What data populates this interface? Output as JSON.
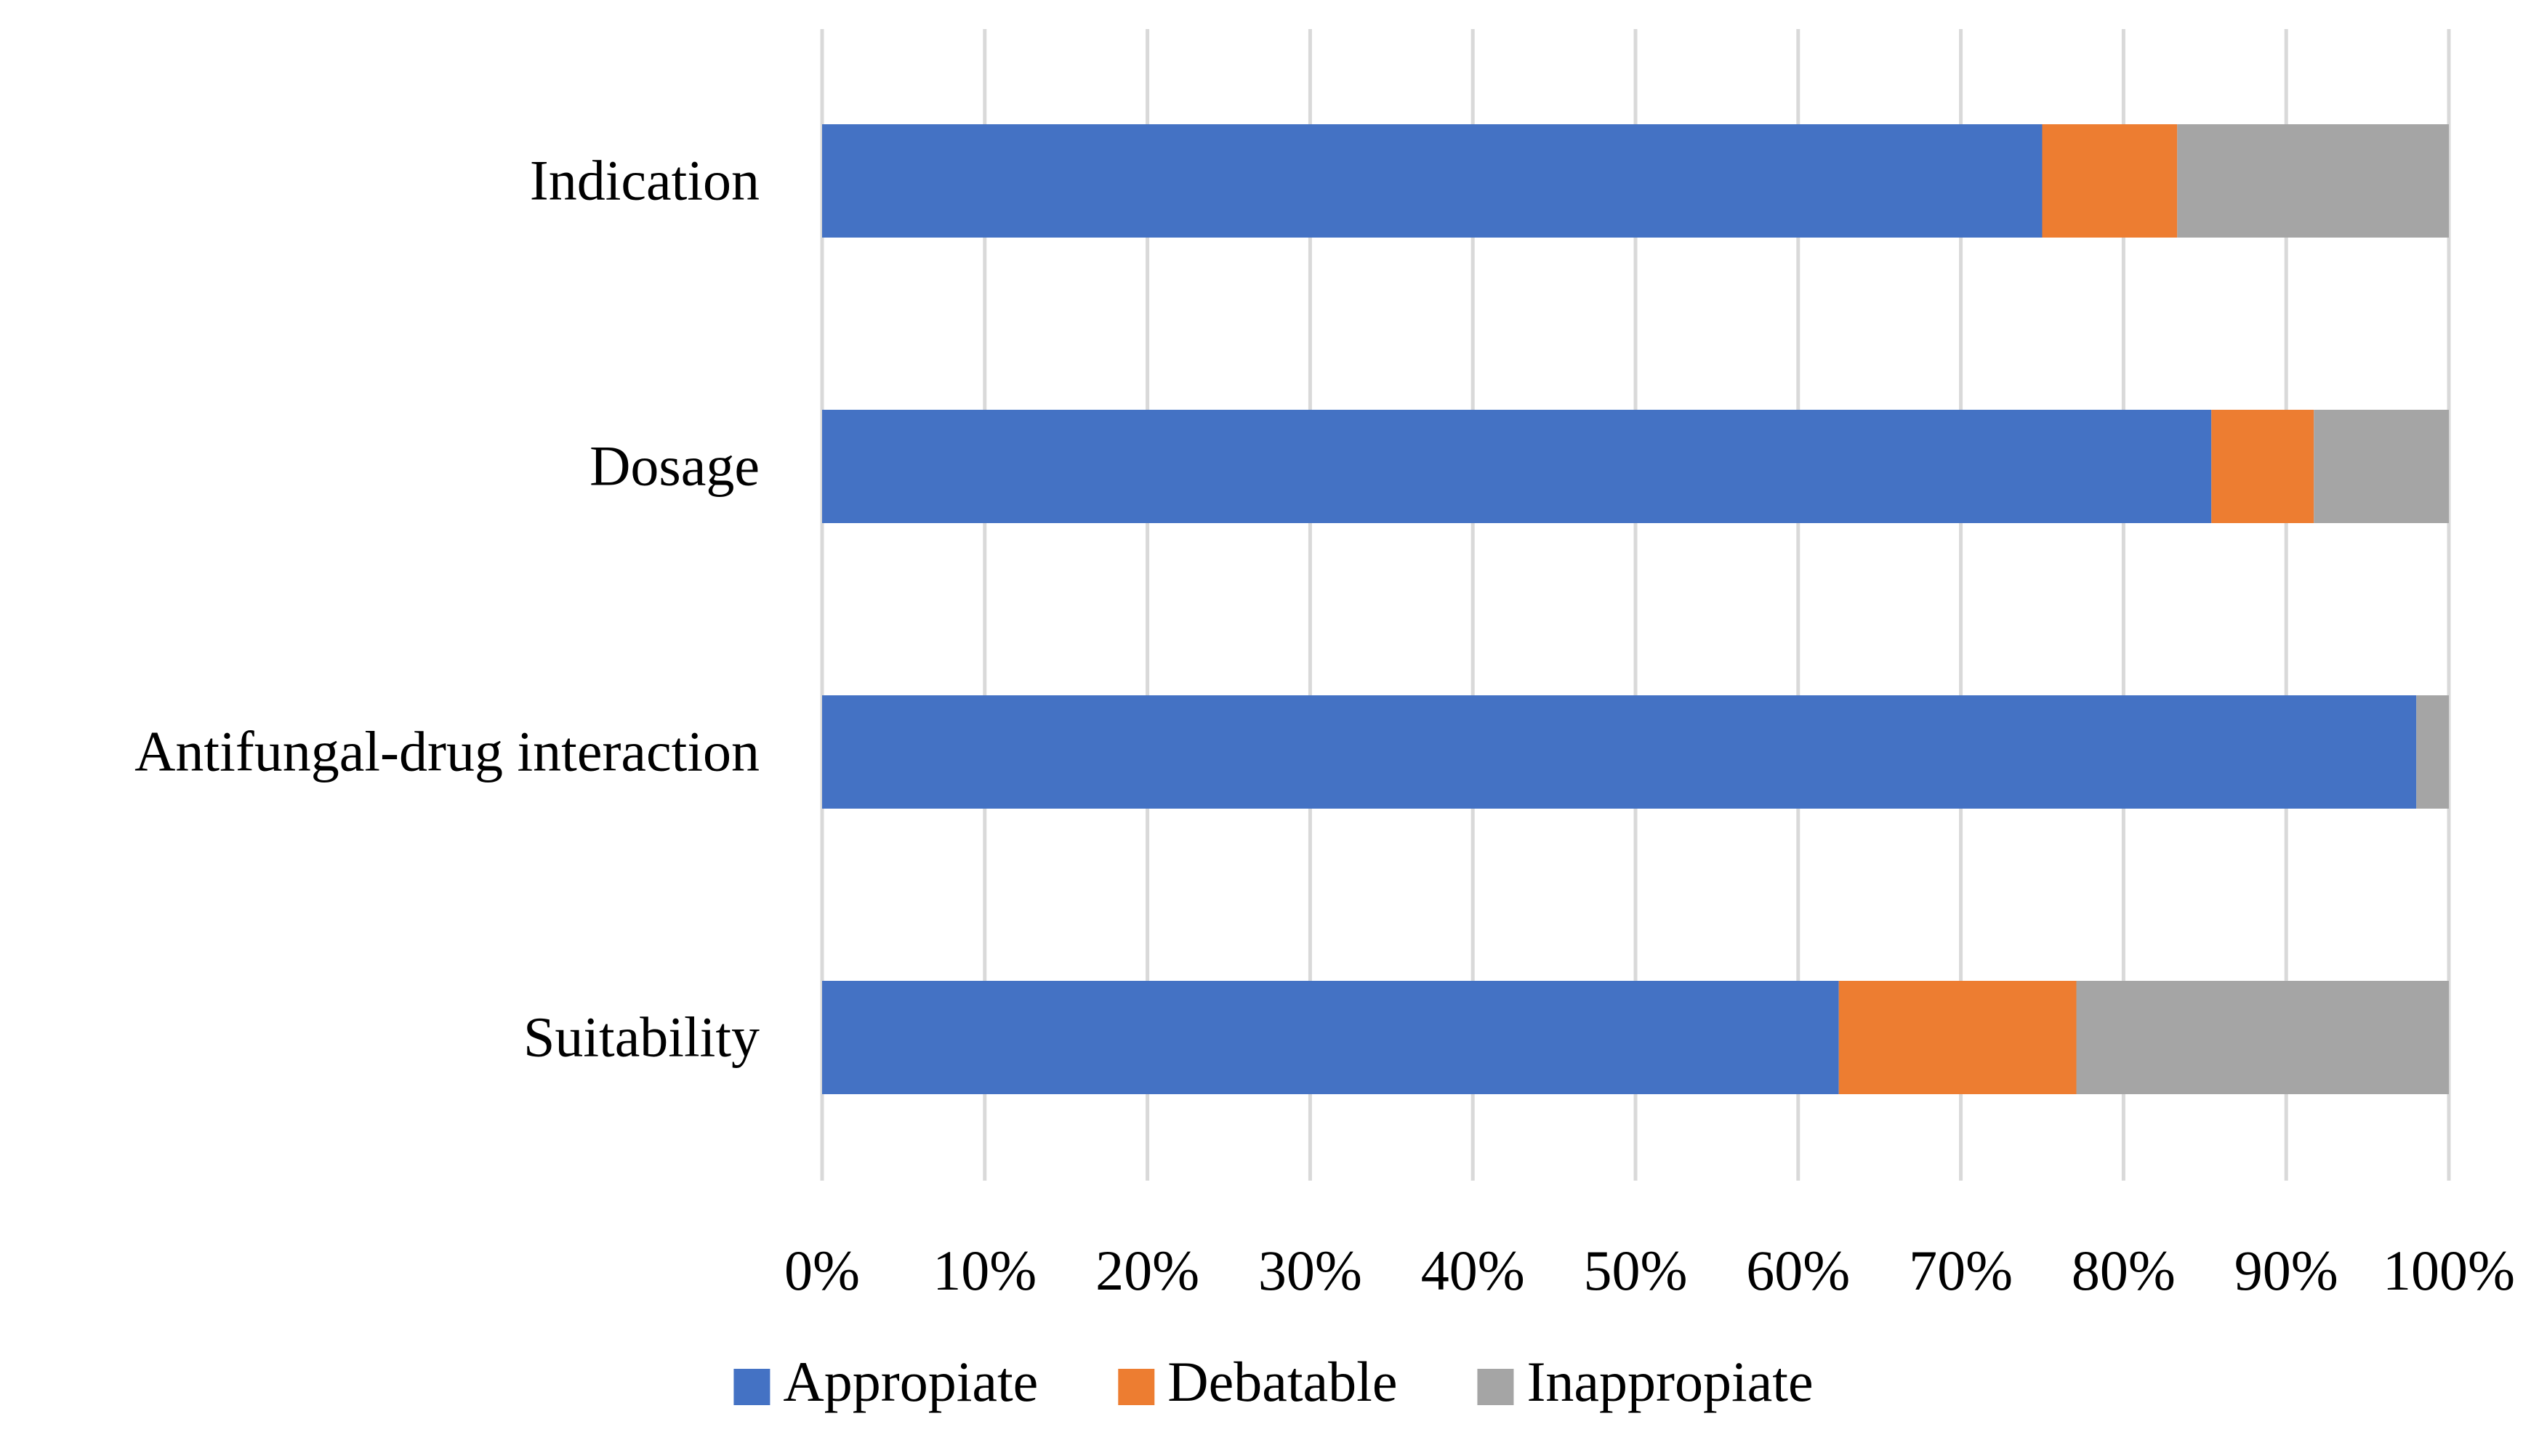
{
  "chart_data": {
    "type": "bar",
    "orientation": "horizontal",
    "stacked": "percent",
    "title": "",
    "xlabel": "",
    "ylabel": "",
    "xlim": [
      0,
      100
    ],
    "grid": true,
    "legend_position": "bottom",
    "categories": [
      "Indication",
      "Dosage",
      "Antifungal-drug interaction",
      "Suitability"
    ],
    "series": [
      {
        "name": "Appropiate",
        "color": "#4472C4",
        "values": [
          75,
          85.4,
          98,
          62.5
        ]
      },
      {
        "name": "Debatable",
        "color": "#ED7D31",
        "values": [
          8.3,
          6.3,
          0,
          14.6
        ]
      },
      {
        "name": "Inappropiate",
        "color": "#A5A5A5",
        "values": [
          16.7,
          8.3,
          2,
          22.9
        ]
      }
    ],
    "x_ticks": [
      "0%",
      "10%",
      "20%",
      "30%",
      "40%",
      "50%",
      "60%",
      "70%",
      "80%",
      "90%",
      "100%"
    ]
  }
}
